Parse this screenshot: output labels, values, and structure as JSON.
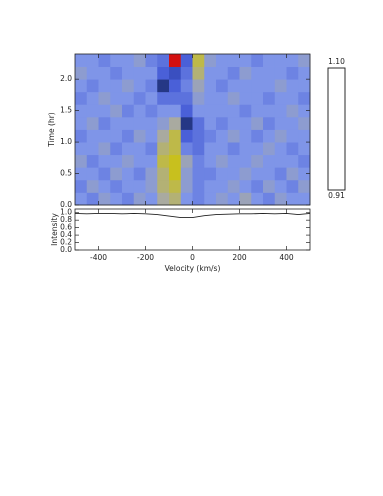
{
  "chart_data": [
    {
      "type": "heatmap",
      "ylabel": "Time (hr)",
      "xlim": [
        -500,
        500
      ],
      "ylim": [
        0,
        2.4
      ],
      "yticks": [
        {
          "value": 0,
          "label": "0.0"
        },
        0.5,
        {
          "value": 1,
          "label": "1.0"
        },
        1.5,
        {
          "value": 2,
          "label": "2.0"
        }
      ],
      "xbins": [
        -500,
        -450,
        -400,
        -350,
        -300,
        -250,
        -200,
        -150,
        -100,
        -50,
        0,
        50,
        100,
        150,
        200,
        250,
        300,
        350,
        400,
        450,
        500
      ],
      "ybins": [
        0,
        0.2,
        0.4,
        0.6,
        0.8,
        1.0,
        1.2,
        1.4,
        1.6,
        1.8,
        2.0,
        2.2,
        2.4
      ],
      "z": [
        [
          1.0,
          0.99,
          1.01,
          1.0,
          0.99,
          1.01,
          1.0,
          1.03,
          1.04,
          1.0,
          0.99,
          1.0,
          1.01,
          1.0,
          1.02,
          1.0,
          0.99,
          1.01,
          1.0,
          1.0
        ],
        [
          0.99,
          1.01,
          1.0,
          0.99,
          1.0,
          1.0,
          1.01,
          1.04,
          1.05,
          1.01,
          0.99,
          1.0,
          1.0,
          1.01,
          1.0,
          0.99,
          1.01,
          1.0,
          0.99,
          1.01
        ],
        [
          1.0,
          1.0,
          0.99,
          1.01,
          1.0,
          0.99,
          1.01,
          1.04,
          1.06,
          1.01,
          0.99,
          0.99,
          1.0,
          1.0,
          1.01,
          1.0,
          1.0,
          0.99,
          1.01,
          1.0
        ],
        [
          1.01,
          0.99,
          1.0,
          1.0,
          1.01,
          1.0,
          1.0,
          1.05,
          1.06,
          1.02,
          0.99,
          1.0,
          1.01,
          1.0,
          1.0,
          1.01,
          1.0,
          1.0,
          1.0,
          0.99
        ],
        [
          1.0,
          1.0,
          1.01,
          0.99,
          1.0,
          1.0,
          0.99,
          1.04,
          1.05,
          0.99,
          0.98,
          1.0,
          1.0,
          0.99,
          1.0,
          1.0,
          1.01,
          1.0,
          0.99,
          1.0
        ],
        [
          0.99,
          1.0,
          1.0,
          1.0,
          0.99,
          1.01,
          1.0,
          1.03,
          1.05,
          0.97,
          0.98,
          0.99,
          1.0,
          1.01,
          1.0,
          0.99,
          1.0,
          1.01,
          1.0,
          1.0
        ],
        [
          1.0,
          1.01,
          0.99,
          1.0,
          1.0,
          1.0,
          1.0,
          1.01,
          1.03,
          0.96,
          0.98,
          1.0,
          0.99,
          1.0,
          1.0,
          1.01,
          0.99,
          1.0,
          1.0,
          1.01
        ],
        [
          1.0,
          1.0,
          1.0,
          1.01,
          0.99,
          1.0,
          0.99,
          1.0,
          1.0,
          0.97,
          1.0,
          1.0,
          1.0,
          1.0,
          0.99,
          1.0,
          1.0,
          1.0,
          1.01,
          1.0
        ],
        [
          0.99,
          1.0,
          1.01,
          1.0,
          1.0,
          0.99,
          1.0,
          0.98,
          0.98,
          0.98,
          1.01,
          1.0,
          1.0,
          1.01,
          1.0,
          1.0,
          0.99,
          1.0,
          1.0,
          0.99
        ],
        [
          1.0,
          0.99,
          1.0,
          1.0,
          1.01,
          1.0,
          0.99,
          0.96,
          0.97,
          0.99,
          1.02,
          1.0,
          0.99,
          1.0,
          1.0,
          1.0,
          1.0,
          1.01,
          1.0,
          1.0
        ],
        [
          1.01,
          1.0,
          1.0,
          0.99,
          1.0,
          1.0,
          1.0,
          0.97,
          0.94,
          0.98,
          1.04,
          1.0,
          1.0,
          0.99,
          1.01,
          1.0,
          1.0,
          1.0,
          0.99,
          1.0
        ],
        [
          1.0,
          1.0,
          0.99,
          1.0,
          1.0,
          1.01,
          0.99,
          0.98,
          0.925,
          0.97,
          1.05,
          1.01,
          1.0,
          1.0,
          1.0,
          0.99,
          1.0,
          1.0,
          1.0,
          1.01
        ]
      ],
      "colorscale": [
        {
          "value": 0.91,
          "color": "#000000"
        },
        {
          "value": 0.925,
          "color": "#d41010"
        },
        {
          "value": 0.94,
          "color": "#3a4fc0"
        },
        {
          "value": 0.955,
          "color": "#12225c"
        },
        {
          "value": 0.97,
          "color": "#4a60d8"
        },
        {
          "value": 1.0,
          "color": "#7f95e8"
        },
        {
          "value": 1.03,
          "color": "#a9aaa0"
        },
        {
          "value": 1.06,
          "color": "#c8c01e"
        },
        {
          "value": 1.1,
          "color": "#ffffff"
        }
      ],
      "clim": [
        0.91,
        1.1
      ],
      "cticks": [
        {
          "value": 1.1,
          "label": "1.10"
        },
        0.91
      ]
    },
    {
      "type": "line",
      "xlabel": "Velocity (km/s)",
      "ylabel": "Intensity",
      "color": "#222222",
      "xlim": [
        -500,
        500
      ],
      "ylim": [
        0,
        1.1
      ],
      "xticks": [
        -400,
        -200,
        0,
        200,
        400
      ],
      "yticks": [
        {
          "value": 0,
          "label": "0.0"
        },
        0.2,
        0.4,
        0.6,
        0.8,
        {
          "value": 1,
          "label": "1.0"
        }
      ],
      "x": [
        -500,
        -450,
        -400,
        -350,
        -300,
        -250,
        -200,
        -150,
        -100,
        -50,
        0,
        50,
        100,
        150,
        200,
        250,
        300,
        350,
        400,
        450,
        500
      ],
      "values": [
        0.98,
        0.97,
        0.98,
        0.98,
        0.97,
        0.98,
        0.97,
        0.95,
        0.91,
        0.87,
        0.87,
        0.92,
        0.95,
        0.96,
        0.97,
        0.97,
        0.98,
        0.97,
        0.98,
        0.95,
        0.98
      ]
    }
  ]
}
